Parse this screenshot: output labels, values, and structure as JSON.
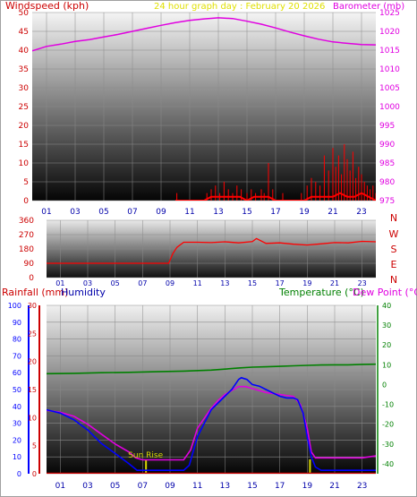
{
  "header": {
    "windspeed_label": "Windspeed (kph)",
    "graph_title": "24 hour graph day : February 20 2026",
    "barometer_label": "Barometer (mb)"
  },
  "compass": [
    "N",
    "W",
    "S",
    "E",
    "N"
  ],
  "lower_header": {
    "rainfall_label": "Rainfall (mm)",
    "humidity_label": "Humidity",
    "temperature_label": "Temperature (°C)",
    "dewpoint_label": "Dew Point (°C)"
  },
  "sunrise_label": "Sun Rise",
  "colors": {
    "windspeed": "#ff0000",
    "gust": "#ff0000",
    "barometer": "#e000e0",
    "direction": "#ff0000",
    "rainfall": "#cc0000",
    "humidity": "#0000ff",
    "temperature": "#008000",
    "dewpoint": "#e000e0",
    "sunmark": "#d8d800",
    "title": "#e0e000"
  },
  "chart_data": [
    {
      "type": "line",
      "name": "wind-baro-panel",
      "x_ticks": [
        "01",
        "03",
        "05",
        "07",
        "09",
        "11",
        "13",
        "15",
        "17",
        "19",
        "21",
        "23"
      ],
      "y_left_ticks": [
        "0",
        "5",
        "10",
        "15",
        "20",
        "25",
        "30",
        "35",
        "40",
        "45",
        "50"
      ],
      "y_right_ticks": [
        "975",
        "980",
        "985",
        "990",
        "995",
        "1000",
        "1005",
        "1010",
        "1015",
        "1020",
        "1025"
      ],
      "ylim_left": [
        0,
        50
      ],
      "ylim_right": [
        975,
        1025
      ],
      "xlim": [
        0,
        24
      ],
      "barometer": {
        "x": [
          0,
          1,
          2,
          3,
          4,
          5,
          6,
          7,
          8,
          9,
          10,
          11,
          12,
          13,
          14,
          15,
          16,
          17,
          18,
          19,
          20,
          21,
          22,
          23,
          24
        ],
        "values": [
          1014.8,
          1016,
          1016.6,
          1017.3,
          1017.8,
          1018.5,
          1019.2,
          1020,
          1020.8,
          1021.6,
          1022.3,
          1022.9,
          1023.3,
          1023.6,
          1023.4,
          1022.7,
          1021.9,
          1020.9,
          1019.8,
          1018.8,
          1017.9,
          1017.2,
          1016.8,
          1016.5,
          1016.4
        ]
      },
      "windspeed": {
        "x": [
          10,
          12,
          12.5,
          13,
          13.5,
          14,
          14.5,
          15,
          15.5,
          16,
          16.5,
          17,
          18,
          19,
          19.5,
          20,
          20.5,
          21,
          21.5,
          22,
          22.5,
          23,
          23.5,
          24
        ],
        "values": [
          0,
          0,
          1,
          1,
          1,
          1,
          1,
          0,
          1,
          1,
          1,
          0,
          0,
          0,
          1,
          1,
          1,
          1,
          2,
          1,
          1,
          2,
          1,
          0
        ]
      },
      "gusts": {
        "x": [
          10.1,
          12.2,
          12.5,
          12.8,
          13.1,
          13.4,
          13.7,
          14,
          14.3,
          14.6,
          15,
          15.3,
          15.6,
          16,
          16.2,
          16.5,
          16.8,
          17.5,
          18.8,
          19.2,
          19.5,
          19.8,
          20.1,
          20.4,
          20.7,
          21,
          21.2,
          21.4,
          21.6,
          21.8,
          22,
          22.2,
          22.4,
          22.6,
          22.8,
          23,
          23.2,
          23.4,
          23.6,
          23.8,
          24
        ],
        "values": [
          2,
          2,
          3,
          4,
          2,
          5,
          3,
          2,
          4,
          3,
          2,
          3,
          2,
          3,
          2,
          10,
          3,
          2,
          2,
          4,
          6,
          5,
          4,
          12,
          8,
          14,
          9,
          12,
          7,
          15,
          11,
          8,
          13,
          6,
          9,
          7,
          5,
          4,
          3,
          4,
          2
        ]
      }
    },
    {
      "type": "line",
      "name": "wind-direction-panel",
      "x_ticks": [
        "01",
        "03",
        "05",
        "07",
        "09",
        "11",
        "13",
        "15",
        "17",
        "19",
        "21",
        "23"
      ],
      "y_ticks": [
        "0",
        "90",
        "180",
        "270",
        "360"
      ],
      "ylim": [
        0,
        360
      ],
      "xlim": [
        0,
        24
      ],
      "direction": {
        "x": [
          0,
          1,
          2,
          3,
          4,
          5,
          6,
          7,
          8,
          8.9,
          9.2,
          9.5,
          10,
          11,
          12,
          13,
          14,
          15,
          15.3,
          16,
          17,
          18,
          19,
          20,
          21,
          22,
          23,
          24
        ],
        "values": [
          90,
          90,
          90,
          90,
          90,
          90,
          90,
          90,
          90,
          90,
          150,
          190,
          222,
          222,
          220,
          225,
          218,
          226,
          245,
          215,
          218,
          210,
          205,
          212,
          220,
          218,
          228,
          225
        ]
      }
    },
    {
      "type": "line",
      "name": "rain-hum-temp-panel",
      "x_ticks": [
        "01",
        "03",
        "05",
        "07",
        "09",
        "11",
        "13",
        "15",
        "17",
        "19",
        "21",
        "23"
      ],
      "humidity_ticks": [
        "0",
        "10",
        "20",
        "30",
        "40",
        "50",
        "60",
        "70",
        "80",
        "90",
        "100"
      ],
      "rainfall_ticks": [
        "0",
        "5",
        "10",
        "15",
        "20",
        "25",
        "30"
      ],
      "temperature_ticks": [
        "-40",
        "-30",
        "-20",
        "-10",
        "0",
        "10",
        "20",
        "30",
        "40"
      ],
      "ylim_humidity": [
        0,
        100
      ],
      "ylim_rainfall": [
        0,
        30
      ],
      "ylim_temperature": [
        -45,
        40
      ],
      "xlim": [
        0,
        24
      ],
      "sunrise_hour": 7.25,
      "sunset_hour": 19.2,
      "humidity": {
        "x": [
          0,
          1,
          2,
          3,
          4,
          5,
          6,
          6.6,
          7,
          8,
          9,
          10,
          10.4,
          11,
          11.5,
          12,
          12.5,
          13,
          13.5,
          14,
          14.2,
          14.6,
          15,
          15.5,
          16,
          16.5,
          17,
          17.5,
          18,
          18.3,
          18.7,
          19,
          19.3,
          19.6,
          20,
          21,
          22,
          23,
          24
        ],
        "values": [
          38,
          36,
          32,
          26,
          18,
          12,
          6,
          2,
          2,
          2,
          2,
          2,
          5,
          22,
          30,
          38,
          42,
          46,
          50,
          56,
          57,
          56,
          53,
          52,
          50,
          48,
          46,
          45,
          45,
          44,
          36,
          22,
          10,
          4,
          2,
          2,
          2,
          2,
          2
        ]
      },
      "temperature": {
        "x": [
          0,
          2,
          4,
          6,
          8,
          10,
          12,
          13,
          14,
          15,
          16,
          17,
          18,
          19,
          20,
          21,
          22,
          23,
          24
        ],
        "values": [
          5.5,
          5.7,
          6,
          6.2,
          6.5,
          6.8,
          7.3,
          7.8,
          8.4,
          8.8,
          9,
          9.2,
          9.5,
          9.7,
          9.9,
          10,
          10,
          10.2,
          10.3
        ]
      },
      "dewpoint": {
        "x": [
          0,
          1,
          2,
          3,
          4,
          5,
          6,
          6.5,
          7,
          8,
          9,
          10,
          10.5,
          11,
          11.5,
          12,
          12.5,
          13,
          13.5,
          14,
          14.5,
          15,
          15.5,
          16,
          17,
          18,
          18.5,
          19,
          19.3,
          19.6,
          20,
          21,
          22,
          23,
          24
        ],
        "values": [
          -13,
          -14,
          -16,
          -20,
          -25,
          -30,
          -34,
          -37,
          -38,
          -38,
          -38,
          -38,
          -33,
          -22,
          -17,
          -12,
          -8,
          -5,
          -3,
          -1,
          -1,
          -2,
          -3,
          -4,
          -5,
          -6,
          -10,
          -22,
          -34,
          -37,
          -37,
          -37,
          -37,
          -37,
          -36
        ]
      },
      "rainfall": {
        "x": [
          0,
          24
        ],
        "values": [
          0,
          0
        ]
      }
    }
  ]
}
